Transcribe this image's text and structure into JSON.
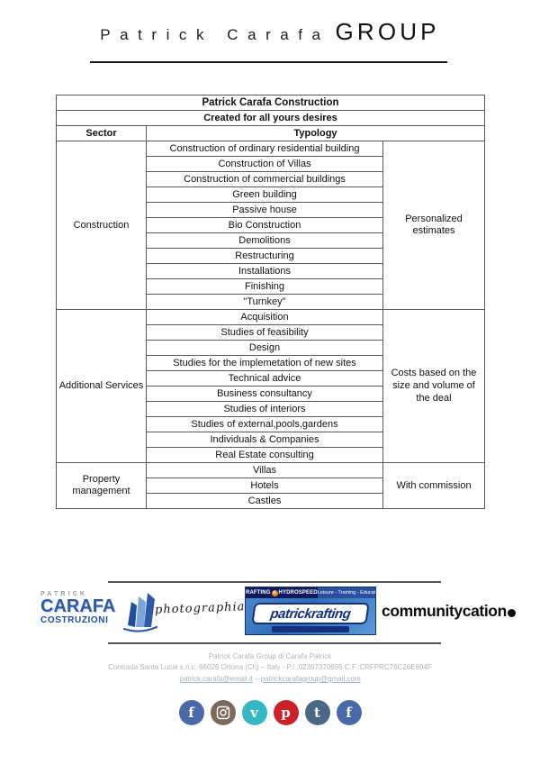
{
  "header": {
    "brand_light": "Patrick Carafa",
    "brand_bold": "GROUP"
  },
  "table": {
    "title": "Patrick Carafa Construction",
    "subtitle": "Created for all yours desires",
    "col_sector": "Sector",
    "col_typology": "Typology",
    "sections": [
      {
        "sector": "Construction",
        "note": "Personalized estimates",
        "typologies": [
          "Construction of ordinary residential building",
          "Construction of Villas",
          "Construction of commercial buildings",
          "Green building",
          "Passive house",
          "Bio Construction",
          "Demolitions",
          "Restructuring",
          "Installations",
          "Finishing",
          "\"Turnkey\""
        ]
      },
      {
        "sector": "Additional Services",
        "note": "Costs based on the size and volume of the deal",
        "typologies": [
          "Acquisition",
          "Studies of feasibility",
          "Design",
          "Studies for the implemetation of new sites",
          "Technical advice",
          "Business consultancy",
          "Studies of interiors",
          "Studies of external,pools,gardens",
          "Individuals & Companies",
          "Real Estate consulting"
        ]
      },
      {
        "sector": "Property management",
        "note": "With commission",
        "typologies": [
          "Villas",
          "Hotels",
          "Castles"
        ]
      }
    ]
  },
  "logos": {
    "carafa": {
      "top": "PATRICK",
      "middle": "CARAFA",
      "bottom": "COSTRUZIONI"
    },
    "photographia": "photographia",
    "rafting": {
      "bar_left1": "RAFTING",
      "bar_e": "e",
      "bar_left2": "HYDROSPEED",
      "bar_right": "Leisure - Training - Education",
      "word": "patrickrafting"
    },
    "communitycation": "communitycation"
  },
  "footer": {
    "line1": "Patrick Carafa Group di Carafa Patrick",
    "line2": "Contrada Santa Lucia s.n.c. 66026 Ortona (Ch) – Italy - P.I.:02367370695 C.F.:CRFPRC76C26E694F",
    "email1": "patrick.carafa@email.it",
    "email_sep": "–",
    "email2": "patrickcarafagroup@gmail.com"
  },
  "social": [
    {
      "name": "facebook-icon",
      "color": "#4a69a8",
      "glyph": "f"
    },
    {
      "name": "instagram-icon",
      "color": "#7e6a5a",
      "glyph": "camera"
    },
    {
      "name": "vimeo-icon",
      "color": "#35b7c1",
      "glyph": "v"
    },
    {
      "name": "pinterest-icon",
      "color": "#ca2128",
      "glyph": "p"
    },
    {
      "name": "tumblr-icon",
      "color": "#4a6885",
      "glyph": "t"
    },
    {
      "name": "facebook-icon",
      "color": "#4a69a8",
      "glyph": "f"
    }
  ]
}
